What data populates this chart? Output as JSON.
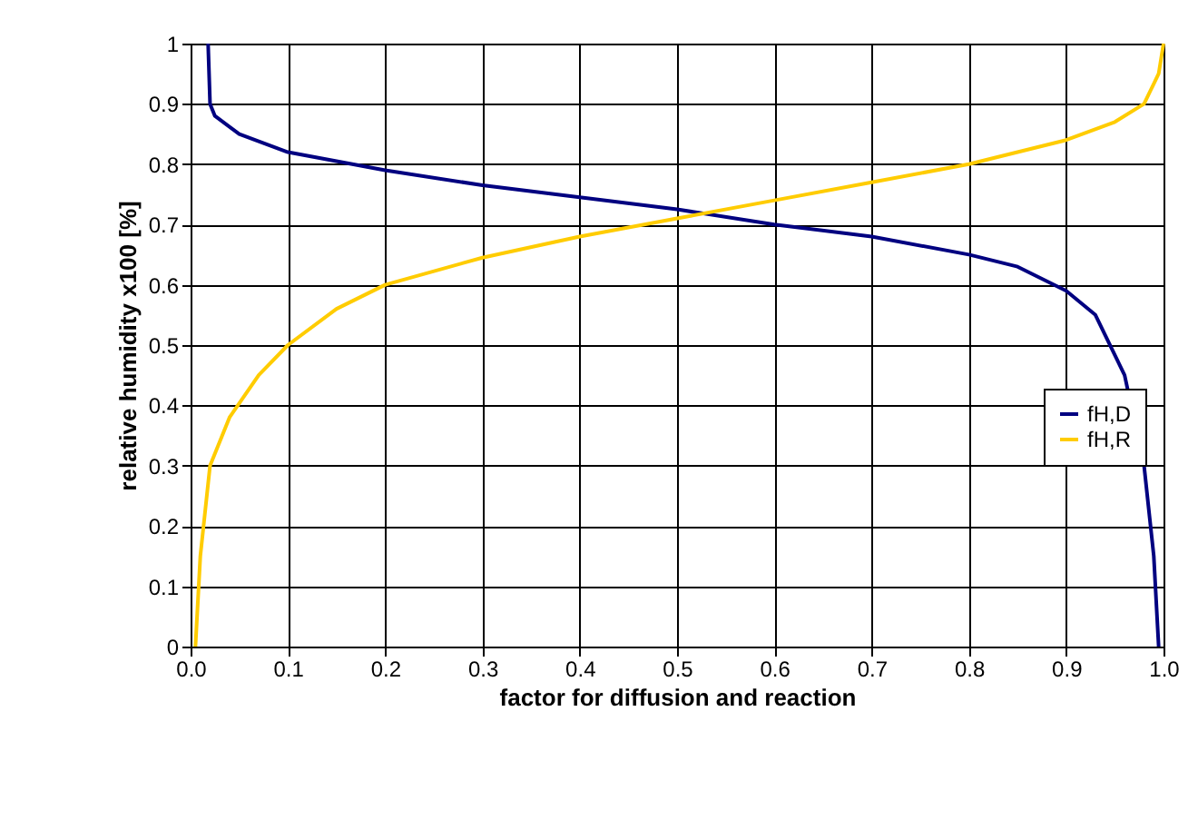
{
  "chart_data": {
    "type": "line",
    "xlabel": "factor for diffusion and reaction",
    "ylabel": "relative humidity x100 [%]",
    "xlim": [
      0,
      1
    ],
    "ylim": [
      0,
      1
    ],
    "xticks": [
      {
        "value": 0,
        "label": "0.0"
      },
      0.1,
      0.2,
      0.3,
      0.4,
      0.5,
      0.6,
      0.7,
      0.8,
      0.9,
      {
        "value": 1,
        "label": "1.0"
      }
    ],
    "yticks": [
      0,
      0.1,
      0.2,
      0.3,
      0.4,
      0.5,
      0.6,
      0.7,
      0.8,
      0.9,
      1
    ],
    "grid": true,
    "legend": "right",
    "marker": "none",
    "line_style": "solid",
    "series": [
      {
        "name": "fH,D",
        "color": "#000080",
        "x": [
          0.018,
          0.02,
          0.025,
          0.05,
          0.1,
          0.2,
          0.3,
          0.4,
          0.5,
          0.6,
          0.7,
          0.8,
          0.85,
          0.9,
          0.93,
          0.96,
          0.98,
          0.99,
          0.995
        ],
        "values": [
          1.0,
          0.9,
          0.88,
          0.85,
          0.82,
          0.79,
          0.765,
          0.745,
          0.725,
          0.7,
          0.68,
          0.65,
          0.63,
          0.59,
          0.55,
          0.45,
          0.3,
          0.15,
          0
        ]
      },
      {
        "name": "fH,R",
        "color": "#ffcc00",
        "x": [
          0.005,
          0.01,
          0.02,
          0.04,
          0.07,
          0.1,
          0.15,
          0.2,
          0.3,
          0.4,
          0.5,
          0.6,
          0.7,
          0.8,
          0.9,
          0.95,
          0.98,
          0.995,
          1.0
        ],
        "values": [
          0,
          0.15,
          0.3,
          0.38,
          0.45,
          0.5,
          0.56,
          0.6,
          0.645,
          0.68,
          0.71,
          0.74,
          0.77,
          0.8,
          0.84,
          0.87,
          0.9,
          0.95,
          1.0
        ]
      }
    ]
  }
}
